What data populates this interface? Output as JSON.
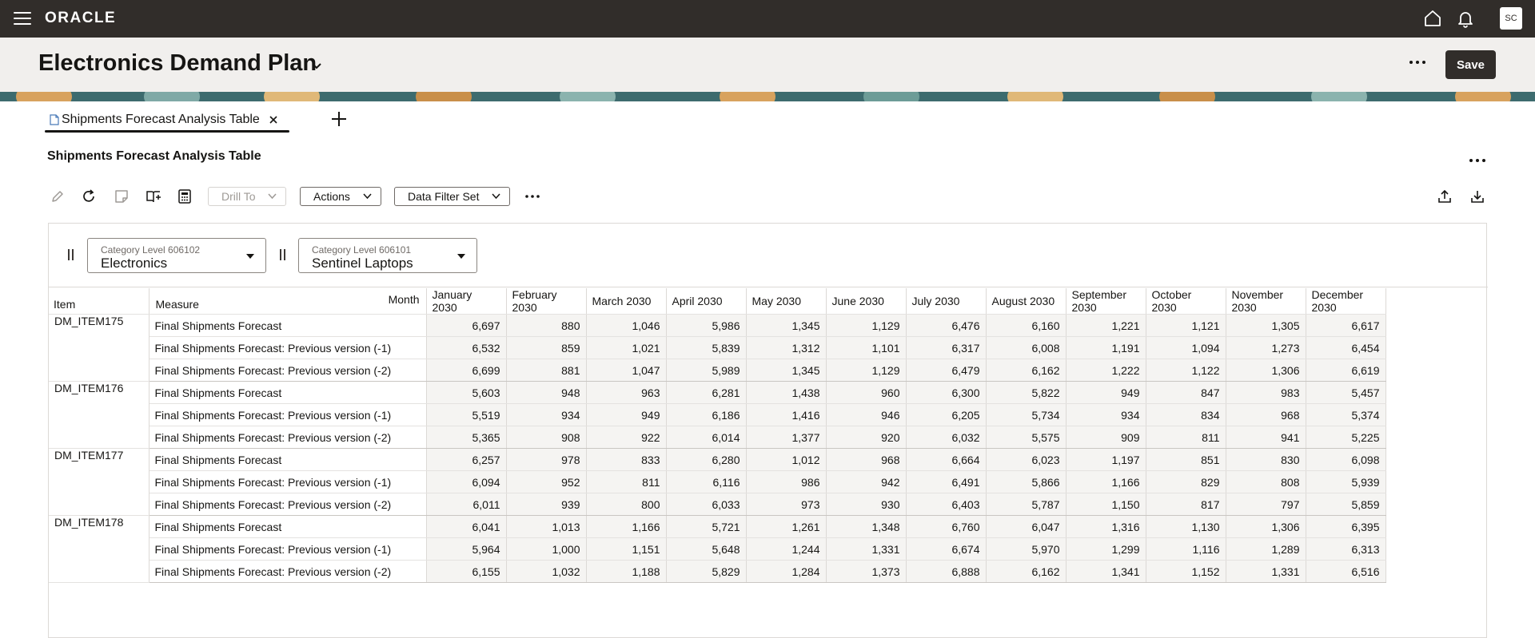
{
  "topbar": {
    "logo": "ORACLE",
    "avatar": "SC"
  },
  "header": {
    "title": "Electronics Demand Plan",
    "save_label": "Save"
  },
  "tabs": [
    {
      "label": "Shipments Forecast Analysis Table"
    }
  ],
  "section": {
    "title": "Shipments Forecast Analysis Table"
  },
  "toolbar": {
    "drill_to": "Drill To",
    "actions": "Actions",
    "data_filter_set": "Data Filter Set"
  },
  "filters": [
    {
      "label": "Category Level 606102",
      "value": "Electronics"
    },
    {
      "label": "Category Level 606101",
      "value": "Sentinel Laptops"
    }
  ],
  "table": {
    "corner": {
      "month": "Month",
      "item": "Item",
      "measure": "Measure"
    },
    "months": [
      [
        "January",
        "2030"
      ],
      [
        "February",
        "2030"
      ],
      [
        "March 2030",
        ""
      ],
      [
        "April 2030",
        ""
      ],
      [
        "May 2030",
        ""
      ],
      [
        "June 2030",
        ""
      ],
      [
        "July 2030",
        ""
      ],
      [
        "August 2030",
        ""
      ],
      [
        "September",
        "2030"
      ],
      [
        "October",
        "2030"
      ],
      [
        "November",
        "2030"
      ],
      [
        "December",
        "2030"
      ]
    ],
    "groups": [
      {
        "item": "DM_ITEM175",
        "rows": [
          {
            "measure": "Final Shipments Forecast",
            "values": [
              "6,697",
              "880",
              "1,046",
              "5,986",
              "1,345",
              "1,129",
              "6,476",
              "6,160",
              "1,221",
              "1,121",
              "1,305",
              "6,617"
            ]
          },
          {
            "measure": "Final Shipments Forecast: Previous version (-1)",
            "values": [
              "6,532",
              "859",
              "1,021",
              "5,839",
              "1,312",
              "1,101",
              "6,317",
              "6,008",
              "1,191",
              "1,094",
              "1,273",
              "6,454"
            ]
          },
          {
            "measure": "Final Shipments Forecast: Previous version (-2)",
            "values": [
              "6,699",
              "881",
              "1,047",
              "5,989",
              "1,345",
              "1,129",
              "6,479",
              "6,162",
              "1,222",
              "1,122",
              "1,306",
              "6,619"
            ]
          }
        ]
      },
      {
        "item": "DM_ITEM176",
        "rows": [
          {
            "measure": "Final Shipments Forecast",
            "values": [
              "5,603",
              "948",
              "963",
              "6,281",
              "1,438",
              "960",
              "6,300",
              "5,822",
              "949",
              "847",
              "983",
              "5,457"
            ]
          },
          {
            "measure": "Final Shipments Forecast: Previous version (-1)",
            "values": [
              "5,519",
              "934",
              "949",
              "6,186",
              "1,416",
              "946",
              "6,205",
              "5,734",
              "934",
              "834",
              "968",
              "5,374"
            ]
          },
          {
            "measure": "Final Shipments Forecast: Previous version (-2)",
            "values": [
              "5,365",
              "908",
              "922",
              "6,014",
              "1,377",
              "920",
              "6,032",
              "5,575",
              "909",
              "811",
              "941",
              "5,225"
            ]
          }
        ]
      },
      {
        "item": "DM_ITEM177",
        "rows": [
          {
            "measure": "Final Shipments Forecast",
            "values": [
              "6,257",
              "978",
              "833",
              "6,280",
              "1,012",
              "968",
              "6,664",
              "6,023",
              "1,197",
              "851",
              "830",
              "6,098"
            ]
          },
          {
            "measure": "Final Shipments Forecast: Previous version (-1)",
            "values": [
              "6,094",
              "952",
              "811",
              "6,116",
              "986",
              "942",
              "6,491",
              "5,866",
              "1,166",
              "829",
              "808",
              "5,939"
            ]
          },
          {
            "measure": "Final Shipments Forecast: Previous version (-2)",
            "values": [
              "6,011",
              "939",
              "800",
              "6,033",
              "973",
              "930",
              "6,403",
              "5,787",
              "1,150",
              "817",
              "797",
              "5,859"
            ]
          }
        ]
      },
      {
        "item": "DM_ITEM178",
        "rows": [
          {
            "measure": "Final Shipments Forecast",
            "values": [
              "6,041",
              "1,013",
              "1,166",
              "5,721",
              "1,261",
              "1,348",
              "6,760",
              "6,047",
              "1,316",
              "1,130",
              "1,306",
              "6,395"
            ]
          },
          {
            "measure": "Final Shipments Forecast: Previous version (-1)",
            "values": [
              "5,964",
              "1,000",
              "1,151",
              "5,648",
              "1,244",
              "1,331",
              "6,674",
              "5,970",
              "1,299",
              "1,116",
              "1,289",
              "6,313"
            ]
          },
          {
            "measure": "Final Shipments Forecast: Previous version (-2)",
            "values": [
              "6,155",
              "1,032",
              "1,188",
              "5,829",
              "1,284",
              "1,373",
              "6,888",
              "6,162",
              "1,341",
              "1,152",
              "1,331",
              "6,516"
            ]
          }
        ]
      }
    ]
  },
  "icons": [
    "hamburger-icon",
    "home-icon",
    "bell-icon",
    "chevron-down-icon",
    "more-icon",
    "document-icon",
    "close-icon",
    "plus-icon",
    "edit-icon",
    "refresh-icon",
    "note-icon",
    "book-icon",
    "calculator-icon",
    "upload-icon",
    "download-icon",
    "drag-handle-icon",
    "caret-down-icon"
  ]
}
